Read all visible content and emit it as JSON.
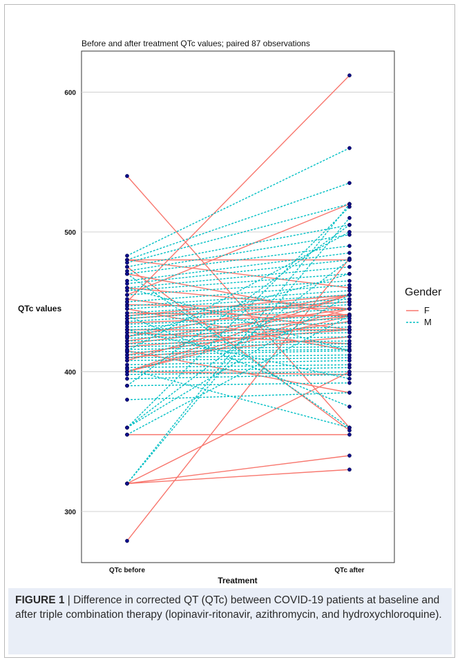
{
  "chart_data": {
    "type": "line",
    "title": "Before and after treatment QTc values; paired 87 observations",
    "xlabel": "Treatment",
    "ylabel": "QTc values",
    "categories": [
      "QTc before",
      "QTc after"
    ],
    "yticks": [
      300,
      400,
      500,
      600
    ],
    "ylim": [
      270,
      625
    ],
    "grid": true,
    "legend": {
      "title": "Gender",
      "position": "right",
      "entries": [
        {
          "name": "F",
          "color": "#f8766d",
          "dash": "solid"
        },
        {
          "name": "M",
          "color": "#00bfc4",
          "dash": "dashed"
        }
      ]
    },
    "point_color": "#0d0d8c",
    "series": [
      {
        "name": "F",
        "pairs": [
          [
            279,
            481
          ],
          [
            540,
            360
          ],
          [
            450,
            612
          ],
          [
            455,
            520
          ],
          [
            480,
            480
          ],
          [
            480,
            460
          ],
          [
            470,
            440
          ],
          [
            460,
            445
          ],
          [
            452,
            430
          ],
          [
            448,
            445
          ],
          [
            445,
            415
          ],
          [
            442,
            440
          ],
          [
            440,
            455
          ],
          [
            438,
            450
          ],
          [
            435,
            441
          ],
          [
            430,
            430
          ],
          [
            428,
            420
          ],
          [
            425,
            455
          ],
          [
            422,
            445
          ],
          [
            420,
            440
          ],
          [
            418,
            430
          ],
          [
            415,
            385
          ],
          [
            410,
            425
          ],
          [
            408,
            455
          ],
          [
            400,
            455
          ],
          [
            400,
            440
          ],
          [
            400,
            398
          ],
          [
            400,
            445
          ],
          [
            355,
            355
          ],
          [
            320,
            340
          ],
          [
            320,
            330
          ],
          [
            475,
            358
          ],
          [
            320,
            400
          ],
          [
            412,
            436
          ]
        ]
      },
      {
        "name": "M",
        "pairs": [
          [
            483,
            560
          ],
          [
            480,
            535
          ],
          [
            478,
            520
          ],
          [
            475,
            505
          ],
          [
            472,
            498
          ],
          [
            470,
            490
          ],
          [
            465,
            485
          ],
          [
            463,
            480
          ],
          [
            460,
            475
          ],
          [
            458,
            470
          ],
          [
            455,
            465
          ],
          [
            450,
            462
          ],
          [
            447,
            458
          ],
          [
            445,
            455
          ],
          [
            442,
            452
          ],
          [
            440,
            450
          ],
          [
            438,
            448
          ],
          [
            436,
            445
          ],
          [
            434,
            440
          ],
          [
            432,
            438
          ],
          [
            430,
            435
          ],
          [
            428,
            432
          ],
          [
            426,
            430
          ],
          [
            424,
            428
          ],
          [
            422,
            425
          ],
          [
            420,
            422
          ],
          [
            418,
            420
          ],
          [
            416,
            418
          ],
          [
            414,
            416
          ],
          [
            412,
            415
          ],
          [
            410,
            412
          ],
          [
            408,
            410
          ],
          [
            405,
            408
          ],
          [
            403,
            405
          ],
          [
            400,
            403
          ],
          [
            398,
            400
          ],
          [
            395,
            398
          ],
          [
            390,
            392
          ],
          [
            380,
            385
          ],
          [
            360,
            518
          ],
          [
            360,
            480
          ],
          [
            360,
            455
          ],
          [
            355,
            440
          ],
          [
            320,
            520
          ],
          [
            320,
            510
          ],
          [
            402,
            360
          ],
          [
            470,
            360
          ],
          [
            440,
            375
          ],
          [
            425,
            470
          ],
          [
            390,
            505
          ],
          [
            460,
            415
          ],
          [
            430,
            395
          ],
          [
            415,
            500
          ]
        ]
      }
    ]
  },
  "caption": {
    "figure_label": "FIGURE 1",
    "separator": "|",
    "text": "Difference in corrected QT (QTc) between COVID-19 patients at baseline and after triple combination therapy (lopinavir-ritonavir, azithromycin, and hydroxychloroquine)."
  }
}
